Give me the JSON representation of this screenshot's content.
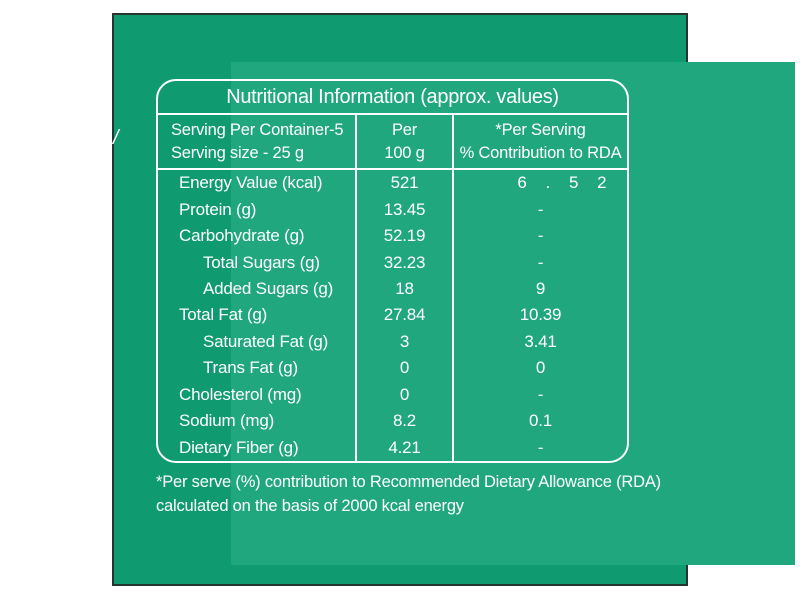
{
  "colors": {
    "page_background": "#ffffff",
    "label_outer_green": "#0f9b6f",
    "label_inner_green": "#20a77d",
    "label_edge": "#24362f",
    "table_border": "#ffffff",
    "text": "#ffffff"
  },
  "label": {
    "title": "Nutritional Information (approx. values)",
    "stray_mark": "/",
    "columns": {
      "serving_line1": "Serving Per Container-5",
      "serving_line2": "Serving size - 25 g",
      "per100_line1": "Per",
      "per100_line2": "100 g",
      "rda_line1": "*Per Serving",
      "rda_line2": "% Contribution to RDA"
    },
    "rows": [
      {
        "name": "Energy Value (kcal)",
        "per_100g": "521",
        "rda": "6 . 5 2",
        "sub": false
      },
      {
        "name": "Protein (g)",
        "per_100g": "13.45",
        "rda": "-",
        "sub": false
      },
      {
        "name": "Carbohydrate (g)",
        "per_100g": "52.19",
        "rda": "-",
        "sub": false
      },
      {
        "name": "Total Sugars (g)",
        "per_100g": "32.23",
        "rda": "-",
        "sub": true
      },
      {
        "name": "Added Sugars (g)",
        "per_100g": "18",
        "rda": "9",
        "sub": true
      },
      {
        "name": "Total Fat (g)",
        "per_100g": "27.84",
        "rda": "10.39",
        "sub": false
      },
      {
        "name": "Saturated Fat (g)",
        "per_100g": "3",
        "rda": "3.41",
        "sub": true
      },
      {
        "name": "Trans Fat (g)",
        "per_100g": "0",
        "rda": "0",
        "sub": true
      },
      {
        "name": "Cholesterol (mg)",
        "per_100g": "0",
        "rda": "-",
        "sub": false
      },
      {
        "name": "Sodium (mg)",
        "per_100g": "8.2",
        "rda": "0.1",
        "sub": false
      },
      {
        "name": "Dietary Fiber (g)",
        "per_100g": "4.21",
        "rda": "-",
        "sub": false
      }
    ],
    "footnote_line1": "*Per serve (%) contribution to Recommended Dietary Allowance (RDA)",
    "footnote_line2": "calculated on the basis of 2000 kcal energy"
  }
}
